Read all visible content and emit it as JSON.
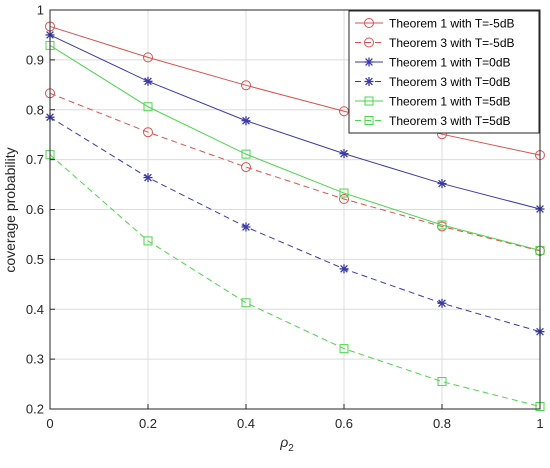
{
  "chart_data": {
    "type": "line",
    "title": "",
    "xlabel": "ρ",
    "xlabel_sub": "2",
    "ylabel": "coverage probability",
    "xlim": [
      0,
      1
    ],
    "ylim": [
      0.2,
      1
    ],
    "xticks": [
      "0",
      "0.2",
      "0.4",
      "0.6",
      "0.8",
      "1"
    ],
    "yticks": [
      "0.2",
      "0.3",
      "0.4",
      "0.5",
      "0.6",
      "0.7",
      "0.8",
      "0.9",
      "1"
    ],
    "grid": true,
    "legend_position": "top-right",
    "x": [
      0,
      0.2,
      0.4,
      0.6,
      0.8,
      1.0
    ],
    "series": [
      {
        "name": "Theorem 1 with T=-5dB",
        "color": "#d9534f",
        "dash": "solid",
        "marker": "circle",
        "values": [
          0.967,
          0.905,
          0.849,
          0.797,
          0.751,
          0.709
        ]
      },
      {
        "name": "Theorem 3 with T=-5dB",
        "color": "#d9534f",
        "dash": "dashed",
        "marker": "circle",
        "values": [
          0.833,
          0.755,
          0.685,
          0.621,
          0.566,
          0.517
        ]
      },
      {
        "name": "Theorem 1 with T=0dB",
        "color": "#3a3aa8",
        "dash": "solid",
        "marker": "star",
        "values": [
          0.95,
          0.857,
          0.778,
          0.712,
          0.652,
          0.601
        ]
      },
      {
        "name": "Theorem 3 with T=0dB",
        "color": "#3a3aa8",
        "dash": "dashed",
        "marker": "star",
        "values": [
          0.785,
          0.664,
          0.565,
          0.481,
          0.412,
          0.355
        ]
      },
      {
        "name": "Theorem 1 with T=5dB",
        "color": "#4cd64c",
        "dash": "solid",
        "marker": "square",
        "values": [
          0.929,
          0.806,
          0.711,
          0.633,
          0.569,
          0.518
        ]
      },
      {
        "name": "Theorem 3 with T=5dB",
        "color": "#4cd64c",
        "dash": "dashed",
        "marker": "square",
        "values": [
          0.71,
          0.537,
          0.413,
          0.321,
          0.255,
          0.205
        ]
      }
    ]
  }
}
